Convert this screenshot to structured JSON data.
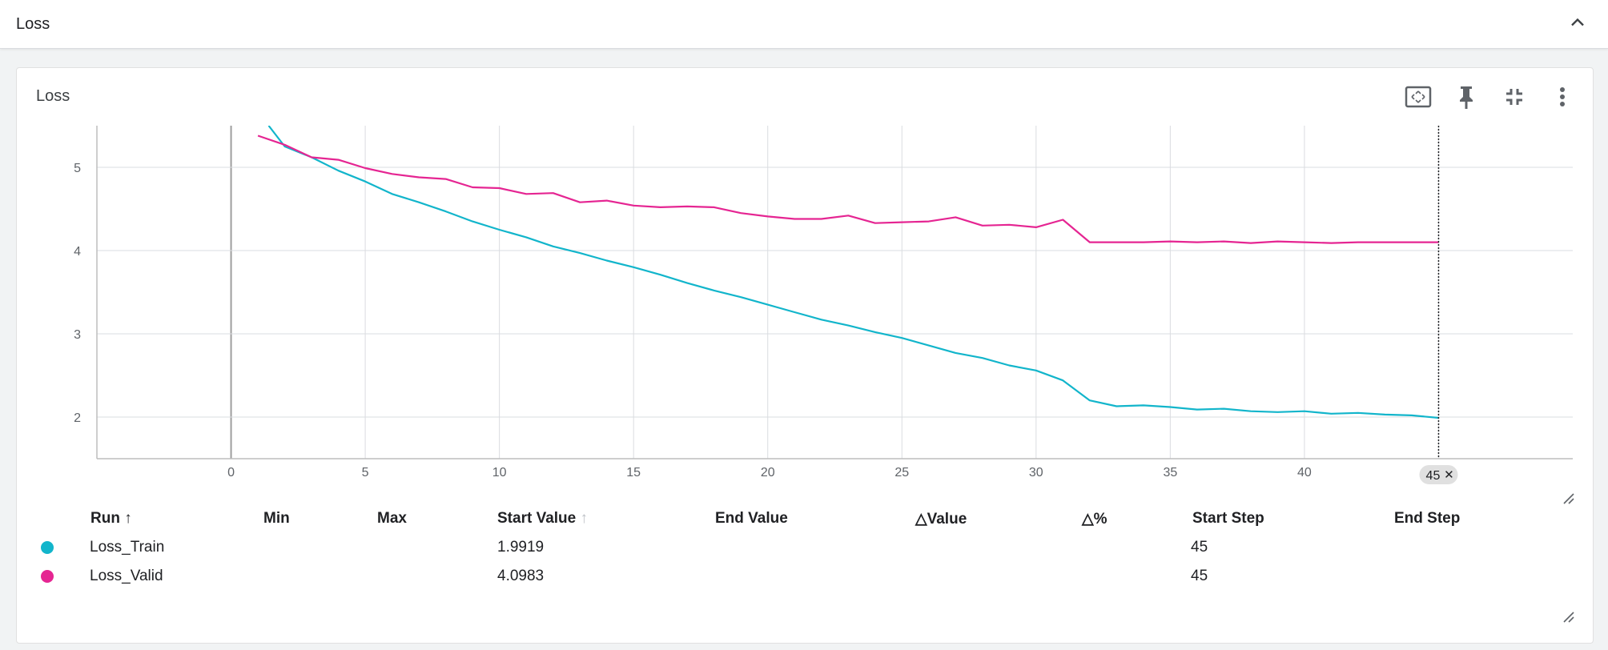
{
  "group": {
    "title": "Loss"
  },
  "card": {
    "title": "Loss"
  },
  "chart_data": {
    "type": "line",
    "xlim": [
      -5,
      50
    ],
    "ylim": [
      1.5,
      5.5
    ],
    "x_ticks": [
      0,
      5,
      10,
      15,
      20,
      25,
      30,
      35,
      40,
      45
    ],
    "y_ticks": [
      2,
      3,
      4,
      5
    ],
    "grid": true,
    "cursor_step": 45,
    "cursor_label": "45",
    "series": [
      {
        "name": "Loss_Train",
        "color": "#12b5cb",
        "x": [
          1.4,
          2,
          3,
          4,
          5,
          6,
          7,
          8,
          9,
          10,
          11,
          12,
          13,
          14,
          15,
          16,
          17,
          18,
          19,
          20,
          21,
          22,
          23,
          24,
          25,
          26,
          27,
          28,
          29,
          30,
          31,
          32,
          33,
          34,
          35,
          36,
          37,
          38,
          39,
          40,
          41,
          42,
          43,
          44,
          45
        ],
        "y": [
          5.5,
          5.25,
          5.12,
          4.96,
          4.83,
          4.68,
          4.58,
          4.47,
          4.35,
          4.25,
          4.16,
          4.05,
          3.97,
          3.88,
          3.8,
          3.71,
          3.61,
          3.52,
          3.44,
          3.35,
          3.26,
          3.17,
          3.1,
          3.02,
          2.95,
          2.86,
          2.77,
          2.71,
          2.62,
          2.56,
          2.44,
          2.2,
          2.13,
          2.14,
          2.12,
          2.09,
          2.1,
          2.07,
          2.06,
          2.07,
          2.04,
          2.05,
          2.03,
          2.02,
          1.99
        ]
      },
      {
        "name": "Loss_Valid",
        "color": "#e52592",
        "x": [
          1,
          2,
          3,
          4,
          5,
          6,
          7,
          8,
          9,
          10,
          11,
          12,
          13,
          14,
          15,
          16,
          17,
          18,
          19,
          20,
          21,
          22,
          23,
          24,
          25,
          26,
          27,
          28,
          29,
          30,
          31,
          32,
          33,
          34,
          35,
          36,
          37,
          38,
          39,
          40,
          41,
          42,
          43,
          44,
          45
        ],
        "y": [
          5.38,
          5.27,
          5.12,
          5.09,
          4.99,
          4.92,
          4.88,
          4.86,
          4.76,
          4.75,
          4.68,
          4.69,
          4.58,
          4.6,
          4.54,
          4.52,
          4.53,
          4.52,
          4.45,
          4.41,
          4.38,
          4.38,
          4.42,
          4.33,
          4.34,
          4.35,
          4.4,
          4.3,
          4.31,
          4.28,
          4.37,
          4.1,
          4.1,
          4.1,
          4.11,
          4.1,
          4.11,
          4.09,
          4.11,
          4.1,
          4.09,
          4.1,
          4.1,
          4.1,
          4.1
        ]
      }
    ]
  },
  "table": {
    "headers": {
      "run": "Run",
      "run_sort": "↑",
      "min": "Min",
      "max": "Max",
      "start_value": "Start Value",
      "start_value_sort": "↑",
      "end_value": "End Value",
      "delta_value": "△Value",
      "delta_pct": "△%",
      "start_step": "Start Step",
      "end_step": "End Step"
    },
    "rows": [
      {
        "color": "#12b5cb",
        "run": "Loss_Train",
        "min": "",
        "max": "",
        "start_value": "1.9919",
        "end_value": "",
        "delta_value": "",
        "delta_pct": "",
        "start_step": "45",
        "end_step": ""
      },
      {
        "color": "#e52592",
        "run": "Loss_Valid",
        "min": "",
        "max": "",
        "start_value": "4.0983",
        "end_value": "",
        "delta_value": "",
        "delta_pct": "",
        "start_step": "45",
        "end_step": ""
      }
    ]
  },
  "icons": {
    "collapse": "chevron-up-icon",
    "fit": "fit-to-view-icon",
    "pin": "pin-icon",
    "fullscreen_exit": "fullscreen-exit-icon",
    "more": "more-vert-icon"
  }
}
